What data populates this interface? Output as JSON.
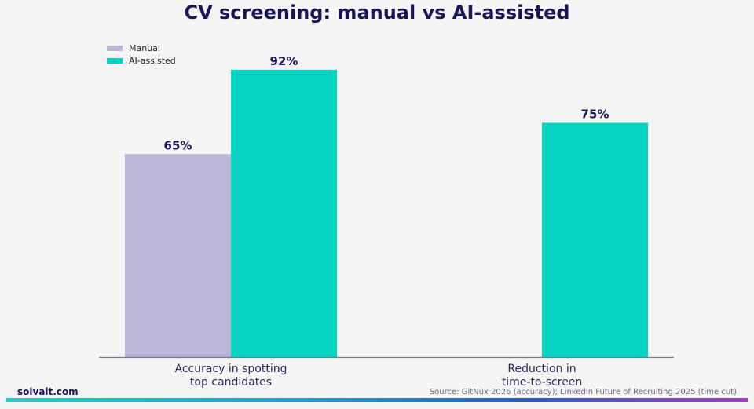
{
  "title": "CV screening: manual vs AI-assisted",
  "legend": {
    "items": [
      {
        "label": "Manual",
        "color": "#b9b6d7"
      },
      {
        "label": "AI-assisted",
        "color": "#05d3c1"
      }
    ]
  },
  "footer": {
    "brand": "solvait.com",
    "source": "Source: GitNux 2026 (accuracy); LinkedIn Future of Recruiting 2025 (time cut)"
  },
  "chart_data": {
    "type": "bar",
    "title": "CV screening: manual vs AI-assisted",
    "categories": [
      [
        "Accuracy in spotting",
        "top candidates"
      ],
      [
        "Reduction in",
        "time-to-screen"
      ]
    ],
    "series": [
      {
        "name": "Manual",
        "color": "#b9b6d7",
        "values": [
          65,
          null
        ]
      },
      {
        "name": "AI-assisted",
        "color": "#05d3c1",
        "values": [
          92,
          75
        ]
      }
    ],
    "value_labels": [
      [
        "65%",
        null
      ],
      [
        "92%",
        "75%"
      ]
    ],
    "ylim": [
      0,
      100
    ],
    "xlabel": "",
    "ylabel": "",
    "grid": false,
    "legend_position": "top-left"
  }
}
